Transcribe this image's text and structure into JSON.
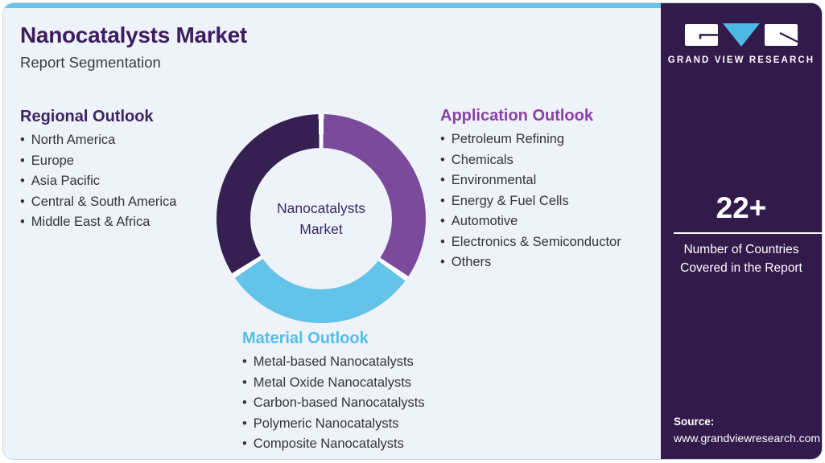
{
  "header": {
    "title": "Nanocatalysts Market",
    "subtitle": "Report Segmentation"
  },
  "sections": {
    "regional": {
      "heading": "Regional Outlook",
      "items": [
        "North America",
        "Europe",
        "Asia Pacific",
        "Central & South America",
        "Middle East & Africa"
      ]
    },
    "application": {
      "heading": "Application Outlook",
      "items": [
        "Petroleum Refining",
        "Chemicals",
        "Environmental",
        "Energy & Fuel Cells",
        "Automotive",
        "Electronics & Semiconductor",
        "Others"
      ]
    },
    "material": {
      "heading": "Material Outlook",
      "items": [
        "Metal-based Nanocatalysts",
        "Metal Oxide Nanocatalysts",
        "Carbon-based Nanocatalysts",
        "Polymeric Nanocatalysts",
        "Composite Nanocatalysts"
      ]
    }
  },
  "chart_data": {
    "type": "pie",
    "subtype": "donut",
    "title": "Nanocatalysts Market",
    "center_label": [
      "Nanocatalysts",
      "Market"
    ],
    "segments": [
      {
        "label": "Application Outlook",
        "color": "#7b4a9b",
        "start_deg": 0,
        "end_deg": 125,
        "share_pct": 34.7
      },
      {
        "label": "Material Outlook",
        "color": "#63c3e9",
        "start_deg": 125,
        "end_deg": 237,
        "share_pct": 31.1
      },
      {
        "label": "Regional Outlook",
        "color": "#352051",
        "start_deg": 237,
        "end_deg": 360,
        "share_pct": 34.2
      }
    ],
    "gap_color": "#ffffff",
    "gap_deg": 3
  },
  "sidebar": {
    "logo_text": "GRAND VIEW RESEARCH",
    "stat_value": "22+",
    "stat_label": "Number of Countries Covered in the Report",
    "source_label": "Source:",
    "source_url": "www.grandviewresearch.com"
  },
  "colors": {
    "accent_bar": "#68c4ea",
    "card_bg": "#edf3f9",
    "sidebar_bg": "#321a4b",
    "title": "#3d1d5f",
    "regional_heading": "#3a2562",
    "application_heading": "#8c40a6",
    "material_heading": "#54bfe9",
    "logo_triangle": "#4fb9e6"
  }
}
